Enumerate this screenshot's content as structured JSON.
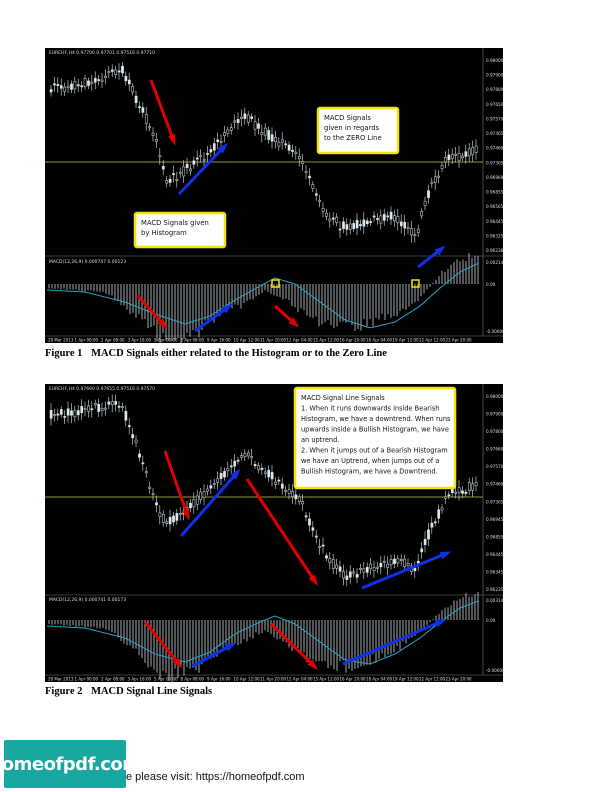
{
  "figures": [
    {
      "caption_num": "Figure 1",
      "caption_text": "MACD Signals either related to the Histogram or to the Zero Line",
      "chart_header": "EURCHF,H4  0.97700 0.97701 0.97516 0.97710",
      "macd_header": "MACD(12,26,9) 0.000747 0.00123",
      "price_ticks": [
        "0.98000",
        "0.97900",
        "0.97800",
        "0.97650",
        "0.97570",
        "0.97465",
        "0.97460",
        "0.97305",
        "0.96969",
        "0.96855",
        "0.96565",
        "0.96445",
        "0.96325",
        "0.96238"
      ],
      "macd_ticks": [
        "0.002147",
        "0.00",
        "-0.00600"
      ],
      "date_ticks": [
        "28 Mar 2013",
        "1 Apr 00:00",
        "2 Apr 08:00",
        "3 Apr 16:00",
        "5 Apr 00:00",
        "8 Apr 08:00",
        "9 Apr 16:00",
        "10 Apr 12:00",
        "11 Apr 20:00",
        "12 Apr 04:00",
        "15 Apr 12:00",
        "16 Apr 20:00",
        "18 Apr 04:00",
        "19 Apr 12:00",
        "22 Apr 12:00",
        "23 Apr 20:00"
      ],
      "callouts": [
        {
          "text": [
            "MACD Signals",
            "given in regards",
            "to the ZERO Line"
          ]
        },
        {
          "text": [
            "MACD Signals given",
            "by Histogram"
          ]
        }
      ]
    },
    {
      "caption_num": "Figure 2",
      "caption_text": "MACD Signal Line Signals",
      "chart_header": "EURCHF,H4  0.97660 0.97655 0.97516 0.97570",
      "macd_header": "MACD(12,26,9) 0.000741 0.00173",
      "price_ticks": [
        "0.98000",
        "0.97900",
        "0.97800",
        "0.97660",
        "0.97570",
        "0.97460",
        "0.97305",
        "0.96945",
        "0.96855",
        "0.96445",
        "0.96345",
        "0.96235"
      ],
      "macd_ticks": [
        "0.003146",
        "0.00",
        "-0.00600"
      ],
      "date_ticks": [
        "28 Mar 2013",
        "1 Apr 00:00",
        "2 Apr 08:00",
        "3 Apr 16:00",
        "5 Apr 00:00",
        "8 Apr 08:00",
        "9 Apr 16:00",
        "10 Apr 12:00",
        "11 Apr 20:00",
        "12 Apr 04:00",
        "15 Apr 12:00",
        "16 Apr 20:00",
        "18 Apr 04:00",
        "19 Apr 12:00",
        "22 Apr 12:00",
        "23 Apr 20:00"
      ],
      "callouts": [
        {
          "text": [
            "MACD Signal Line Signals",
            "1. When it runs downwards inside Bearish",
            "Histogram, we have a downtrend. When runs",
            "upwards inside a Bullish Histogram, we have",
            "an uptrend.",
            "2. When it jumps out of a Bearish Histogram",
            "we have an Uptrend, when jumps out of a",
            "Bullish Histogram, we have a Downtrend."
          ]
        }
      ]
    }
  ],
  "logo_text": "homeofpdf.com",
  "footer_text": "e please visit: https://homeofpdf.com",
  "colors": {
    "callout_border": "#f2e600",
    "candle": "#dbe9ee",
    "macd_line": "#2aa6c8",
    "zero_line": "#c8c850",
    "arrow_red": "#e00000",
    "arrow_blue": "#1030e8"
  }
}
